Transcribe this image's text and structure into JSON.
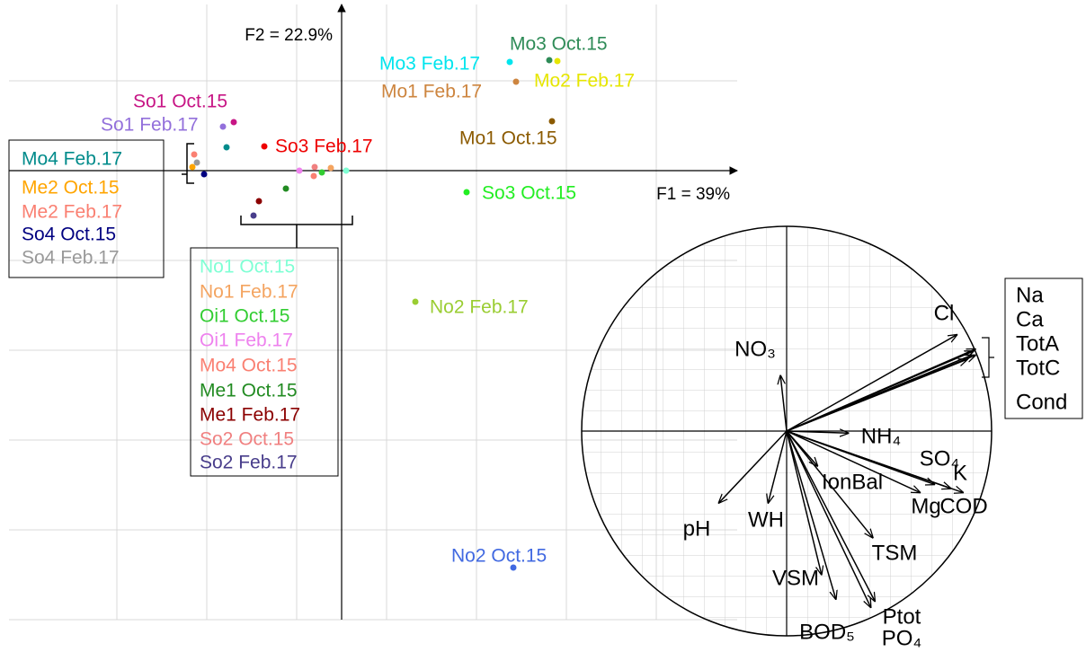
{
  "chart_data": [
    {
      "type": "scatter",
      "x_label": "F1 = 39%",
      "y_label": "F2 = 22.9%",
      "xlim": [
        -3.7,
        4.4
      ],
      "ylim": [
        -5.0,
        1.85
      ],
      "xticks": [
        -2.5,
        -1.5,
        -0.5,
        0.5,
        1.5,
        2.5,
        3.5
      ],
      "yticks": [
        1,
        -1,
        -2,
        -3,
        -4,
        -5
      ],
      "grid": true,
      "points": [
        {
          "name": "Mo3 Oct.15",
          "color": "#2e8b57",
          "x": 2.31,
          "y": 1.23
        },
        {
          "name": "Mo3 Feb.17",
          "color": "#00e5ee",
          "x": 1.87,
          "y": 1.21
        },
        {
          "name": "Mo2 Feb.17",
          "color": "#e6e600",
          "x": 2.4,
          "y": 1.22
        },
        {
          "name": "Mo1 Feb.17",
          "color": "#cd853f",
          "x": 1.94,
          "y": 0.99
        },
        {
          "name": "Mo1 Oct.15",
          "color": "#8b5a00",
          "x": 2.34,
          "y": 0.55
        },
        {
          "name": "So3 Oct.15",
          "color": "#22ee22",
          "x": 1.39,
          "y": -0.24
        },
        {
          "name": "No2 Feb.17",
          "color": "#9acd32",
          "x": 0.82,
          "y": -1.46
        },
        {
          "name": "No2 Oct.15",
          "color": "#4169e1",
          "x": 1.91,
          "y": -4.42
        },
        {
          "name": "So1 Oct.15",
          "color": "#c71585",
          "x": -1.2,
          "y": 0.54
        },
        {
          "name": "So1 Feb.17",
          "color": "#9370db",
          "x": -1.32,
          "y": 0.49
        },
        {
          "name": "So3 Feb.17",
          "color": "#ee0000",
          "x": -0.86,
          "y": 0.27
        },
        {
          "name": "Mo4 Feb.17",
          "color": "#008b8b",
          "x": -1.28,
          "y": 0.26
        },
        {
          "name": "Me2 Oct.15",
          "color": "#ffa500",
          "x": -1.66,
          "y": 0.04
        },
        {
          "name": "Me2 Feb.17",
          "color": "#fa8072",
          "x": -1.64,
          "y": 0.18
        },
        {
          "name": "So4 Oct.15",
          "color": "#000080",
          "x": -1.53,
          "y": -0.04
        },
        {
          "name": "So4 Feb.17",
          "color": "#999999",
          "x": -1.61,
          "y": 0.09
        },
        {
          "name": "No1 Oct.15",
          "color": "#7fffd4",
          "x": 0.05,
          "y": 0.0
        },
        {
          "name": "No1 Feb.17",
          "color": "#f4a460",
          "x": -0.12,
          "y": 0.03
        },
        {
          "name": "Oi1 Oct.15",
          "color": "#32cd32",
          "x": -0.22,
          "y": -0.02
        },
        {
          "name": "Oi1 Feb.17",
          "color": "#ee82ee",
          "x": -0.47,
          "y": 0.0
        },
        {
          "name": "Mo4 Oct.15",
          "color": "#fa8072",
          "x": -0.31,
          "y": -0.06
        },
        {
          "name": "Me1 Oct.15",
          "color": "#228b22",
          "x": -0.62,
          "y": -0.2
        },
        {
          "name": "Me1 Feb.17",
          "color": "#8b0000",
          "x": -0.92,
          "y": -0.34
        },
        {
          "name": "So2 Oct.15",
          "color": "#f08080",
          "x": -0.3,
          "y": 0.04
        },
        {
          "name": "So2 Feb.17",
          "color": "#483d8b",
          "x": -0.98,
          "y": -0.5
        }
      ]
    },
    {
      "type": "vector",
      "xlim": [
        -1,
        1
      ],
      "ylim": [
        -1,
        1
      ],
      "color": "#000000",
      "variables": [
        {
          "name": "Cl",
          "x": 0.83,
          "y": 0.47
        },
        {
          "name": "Na",
          "x": 0.91,
          "y": 0.39
        },
        {
          "name": "Ca",
          "x": 0.92,
          "y": 0.4
        },
        {
          "name": "TotA",
          "x": 0.9,
          "y": 0.37
        },
        {
          "name": "TotC",
          "x": 0.88,
          "y": 0.35
        },
        {
          "name": "Cond",
          "x": 0.92,
          "y": 0.37
        },
        {
          "name": "NO₃",
          "x": -0.03,
          "y": 0.27
        },
        {
          "name": "NH₄",
          "x": 0.3,
          "y": -0.01
        },
        {
          "name": "SO₄",
          "x": 0.72,
          "y": -0.26
        },
        {
          "name": "K",
          "x": 0.8,
          "y": -0.28
        },
        {
          "name": "COD",
          "x": 0.86,
          "y": -0.3
        },
        {
          "name": "Mg",
          "x": 0.65,
          "y": -0.3
        },
        {
          "name": "IonBal",
          "x": 0.15,
          "y": -0.17
        },
        {
          "name": "TSM",
          "x": 0.42,
          "y": -0.52
        },
        {
          "name": "VSM",
          "x": 0.17,
          "y": -0.7
        },
        {
          "name": "Ptot",
          "x": 0.41,
          "y": -0.86
        },
        {
          "name": "PO₄",
          "x": 0.43,
          "y": -0.83
        },
        {
          "name": "BOD₅",
          "x": 0.24,
          "y": -0.82
        },
        {
          "name": "WH",
          "x": -0.09,
          "y": -0.35
        },
        {
          "name": "pH",
          "x": -0.33,
          "y": -0.35
        }
      ]
    }
  ]
}
